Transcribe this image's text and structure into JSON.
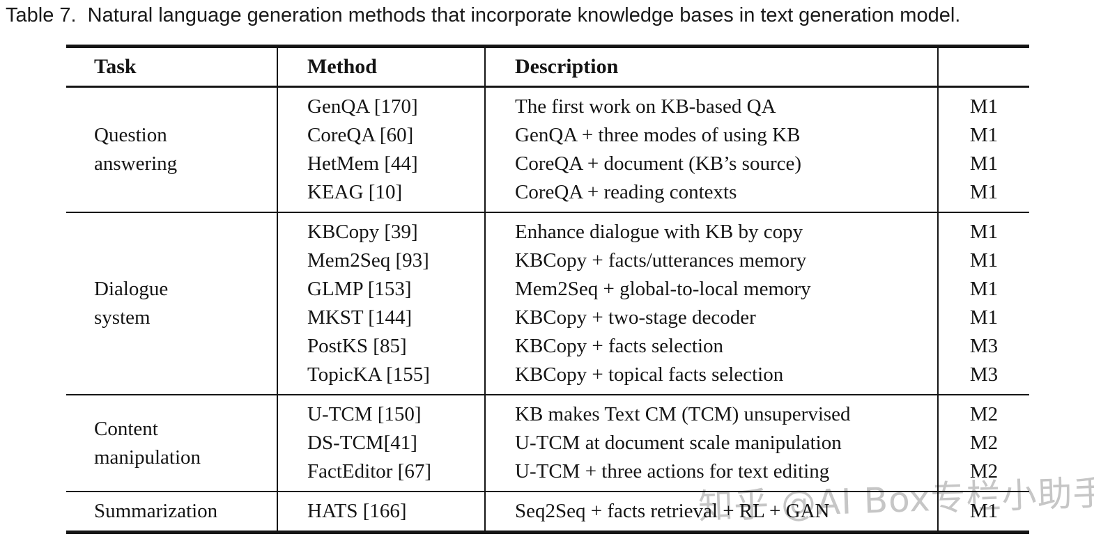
{
  "caption": "Table 7.  Natural language generation methods that incorporate knowledge bases in text generation model.",
  "table": {
    "headers": [
      "Task",
      "Method",
      "Description",
      ""
    ],
    "groups": [
      {
        "task": "Question\nanswering",
        "rows": [
          {
            "method": "GenQA [170]",
            "description": "The first work on KB-based QA",
            "model": "M1"
          },
          {
            "method": "CoreQA [60]",
            "description": "GenQA + three modes of using KB",
            "model": "M1"
          },
          {
            "method": "HetMem [44]",
            "description": "CoreQA + document (KB’s source)",
            "model": "M1"
          },
          {
            "method": "KEAG [10]",
            "description": "CoreQA + reading contexts",
            "model": "M1"
          }
        ]
      },
      {
        "task": "Dialogue\nsystem",
        "rows": [
          {
            "method": "KBCopy [39]",
            "description": "Enhance dialogue with KB by copy",
            "model": "M1"
          },
          {
            "method": "Mem2Seq [93]",
            "description": "KBCopy + facts/utterances memory",
            "model": "M1"
          },
          {
            "method": "GLMP [153]",
            "description": "Mem2Seq + global-to-local memory",
            "model": "M1"
          },
          {
            "method": "MKST [144]",
            "description": "KBCopy + two-stage decoder",
            "model": "M1"
          },
          {
            "method": "PostKS [85]",
            "description": "KBCopy + facts selection",
            "model": "M3"
          },
          {
            "method": "TopicKA [155]",
            "description": "KBCopy + topical facts selection",
            "model": "M3"
          }
        ]
      },
      {
        "task": "Content\nmanipulation",
        "rows": [
          {
            "method": "U-TCM [150]",
            "description": "KB makes Text CM (TCM) unsupervised",
            "model": "M2"
          },
          {
            "method": "DS-TCM[41]",
            "description": "U-TCM at document scale manipulation",
            "model": "M2"
          },
          {
            "method": "FactEditor [67]",
            "description": "U-TCM + three actions for text editing",
            "model": "M2"
          }
        ]
      },
      {
        "task": "Summarization",
        "rows": [
          {
            "method": "HATS [166]",
            "description": "Seq2Seq + facts retrieval + RL + GAN",
            "model": "M1"
          }
        ]
      }
    ]
  },
  "watermark": "知乎 @AI Box专栏小助手",
  "colors": {
    "text": "#151515",
    "rule": "#151515",
    "watermark": "#c6c6c6",
    "background": "#ffffff"
  }
}
